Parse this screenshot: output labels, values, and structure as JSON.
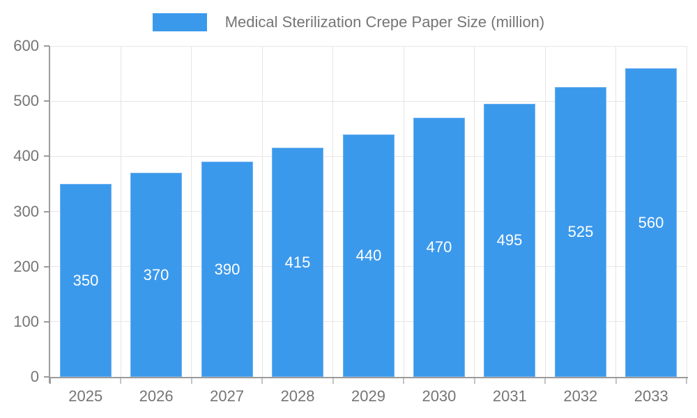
{
  "legend": {
    "label": "Medical Sterilization Crepe Paper Size (million)"
  },
  "chart_data": {
    "type": "bar",
    "title": "Medical Sterilization Crepe Paper Size (million)",
    "categories": [
      "2025",
      "2026",
      "2027",
      "2028",
      "2029",
      "2030",
      "2031",
      "2032",
      "2033"
    ],
    "values": [
      350,
      370,
      390,
      415,
      440,
      470,
      495,
      525,
      560
    ],
    "series_name": "Medical Sterilization Crepe Paper Size (million)",
    "xlabel": "",
    "ylabel": "",
    "ylim": [
      0,
      600
    ],
    "ytick_step": 100,
    "yticks": [
      0,
      100,
      200,
      300,
      400,
      500,
      600
    ],
    "grid": true,
    "bar_labels_inside": true,
    "legend_position": "top-center"
  },
  "colors": {
    "bar": "#3b99ec",
    "bar_edge": "#6db1f0",
    "bar_label": "#ffffff",
    "axis_text": "#757575",
    "legend_text": "#757575",
    "grid_line": "#e6e6e6",
    "axis_line": "#9b9b9b",
    "tick_mark": "#c4c4c4",
    "background": "#ffffff"
  }
}
